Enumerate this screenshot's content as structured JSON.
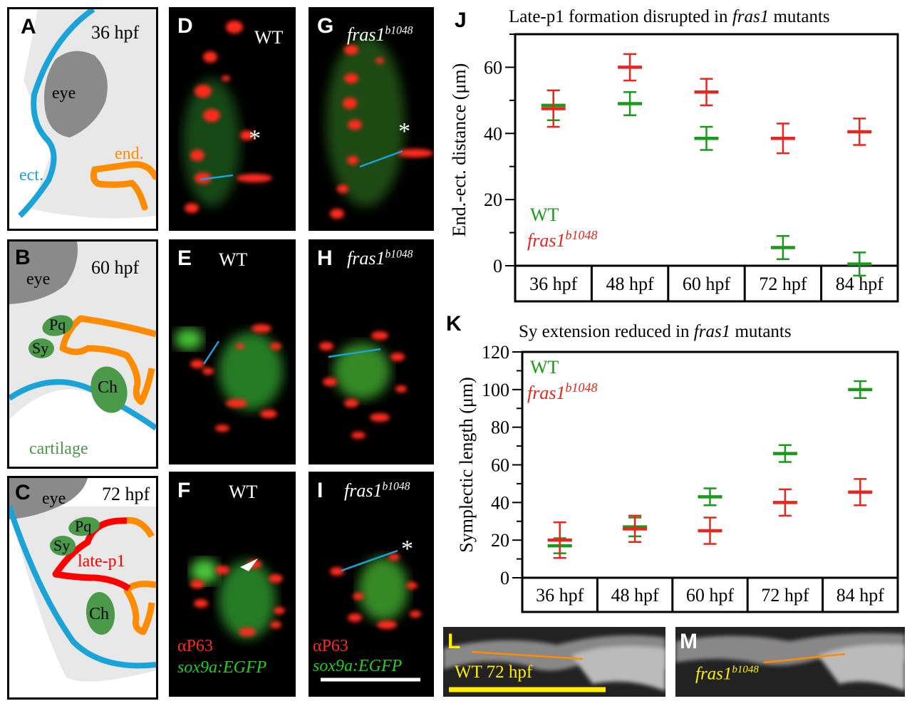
{
  "panels": {
    "A": {
      "letter": "A",
      "stage": "36 hpf",
      "labels": {
        "eye": "eye",
        "ect": "ect.",
        "end": "end."
      }
    },
    "B": {
      "letter": "B",
      "stage": "60 hpf",
      "labels": {
        "eye": "eye",
        "pq": "Pq",
        "sy": "Sy",
        "ch": "Ch",
        "cartilage": "cartilage"
      }
    },
    "C": {
      "letter": "C",
      "stage": "72 hpf",
      "labels": {
        "eye": "eye",
        "pq": "Pq",
        "sy": "Sy",
        "latep1": "late-p1",
        "ch": "Ch"
      }
    },
    "D": {
      "letter": "D",
      "label": "WT",
      "mark": "*"
    },
    "E": {
      "letter": "E",
      "label": "WT"
    },
    "F": {
      "letter": "F",
      "label": "WT",
      "stain1": "αP63",
      "stain2": "sox9a:EGFP"
    },
    "G": {
      "letter": "G",
      "geno": "fras1",
      "allele": "b1048",
      "mark": "*"
    },
    "H": {
      "letter": "H",
      "geno": "fras1",
      "allele": "b1048"
    },
    "I": {
      "letter": "I",
      "geno": "fras1",
      "allele": "b1048",
      "mark": "*",
      "stain1": "αP63",
      "stain2": "sox9a:EGFP"
    },
    "L": {
      "letter": "L",
      "label": "WT 72 hpf"
    },
    "M": {
      "letter": "M",
      "geno": "fras1",
      "allele": "b1048"
    }
  },
  "colors": {
    "wt": "#1a9a1a",
    "mutant": "#e8261f",
    "ectoderm": "#1aa3d9",
    "endoderm": "#ff8c00",
    "latep1": "#ff0000",
    "cartilage": "#4a9a4a",
    "eye": "#8a8a8a",
    "tissue": "#e8e8e8"
  },
  "chart_data": [
    {
      "panel": "J",
      "type": "scatter",
      "title_pre": "Late-p1 formation disrupted in ",
      "title_it": "fras1",
      "title_post": " mutants",
      "ylabel": "End.-ect. distance (μm)",
      "categories": [
        "36 hpf",
        "48 hpf",
        "60 hpf",
        "72 hpf",
        "84 hpf"
      ],
      "ylim": [
        0,
        70
      ],
      "yticks": [
        0,
        20,
        40,
        60
      ],
      "legend": {
        "wt": "WT",
        "mut_geno": "fras1",
        "mut_allele": "b1048"
      },
      "series": [
        {
          "name": "WT",
          "color": "#1a9a1a",
          "values": [
            48.5,
            49,
            38.5,
            null,
            null
          ],
          "err": [
            4.5,
            3.5,
            3.5,
            null,
            null
          ]
        },
        {
          "name": "fras1b1048",
          "color": "#e8261f",
          "values": [
            47.5,
            60,
            52.5,
            38.5,
            40.5
          ],
          "err": [
            5.5,
            4,
            4,
            4.5,
            4
          ]
        },
        {
          "name": "WT",
          "color": "#1a9a1a",
          "values": [
            null,
            null,
            null,
            5.5,
            0.5
          ],
          "err": [
            null,
            null,
            null,
            3.5,
            3.5
          ]
        }
      ]
    },
    {
      "panel": "K",
      "type": "scatter",
      "title_pre": "Sy extension reduced in ",
      "title_it": "fras1",
      "title_post": " mutants",
      "ylabel": "Symplectic length (μm)",
      "categories": [
        "36 hpf",
        "48 hpf",
        "60 hpf",
        "72 hpf",
        "84 hpf"
      ],
      "ylim": [
        0,
        120
      ],
      "yticks": [
        0,
        20,
        40,
        60,
        80,
        100,
        120
      ],
      "legend": {
        "wt": "WT",
        "mut_geno": "fras1",
        "mut_allele": "b1048"
      },
      "series": [
        {
          "name": "WT",
          "color": "#1a9a1a",
          "values": [
            17,
            27,
            43,
            66,
            100
          ],
          "err": [
            4,
            5,
            4.5,
            4.5,
            4.5
          ]
        },
        {
          "name": "fras1b1048",
          "color": "#e8261f",
          "values": [
            20,
            26,
            25,
            40,
            45.5
          ],
          "err": [
            9.5,
            7,
            7,
            7,
            7
          ]
        }
      ]
    }
  ]
}
